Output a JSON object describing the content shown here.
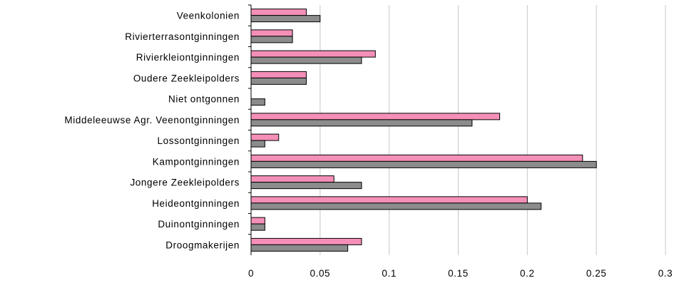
{
  "chart_data": {
    "type": "bar",
    "orientation": "horizontal",
    "categories": [
      "Veenkolonien",
      "Rivierterrasontginningen",
      "Rivierkleiontginningen",
      "Oudere Zeekleipolders",
      "Niet ontgonnen",
      "Middeleeuwse Agr. Veenontginningen",
      "Lossontginningen",
      "Kampontginningen",
      "Jongere Zeekleipolders",
      "Heideontginningen",
      "Duinontginningen",
      "Droogmakerijen"
    ],
    "series": [
      {
        "color": "#f48fb8",
        "values": [
          0.04,
          0.03,
          0.09,
          0.04,
          0.0,
          0.18,
          0.02,
          0.24,
          0.06,
          0.2,
          0.01,
          0.08
        ]
      },
      {
        "color": "#8c8c8c",
        "values": [
          0.05,
          0.03,
          0.08,
          0.04,
          0.01,
          0.16,
          0.01,
          0.25,
          0.08,
          0.21,
          0.01,
          0.07
        ]
      }
    ],
    "xlim": [
      0,
      0.3
    ],
    "xticks": [
      0,
      0.05,
      0.1,
      0.15,
      0.2,
      0.25,
      0.3
    ],
    "xtick_labels": [
      "0",
      "0.05",
      "0.1",
      "0.15",
      "0.2",
      "0.25",
      "0.3"
    ],
    "grid": "vertical",
    "legend": "none",
    "title": "",
    "xlabel": "",
    "ylabel": ""
  }
}
